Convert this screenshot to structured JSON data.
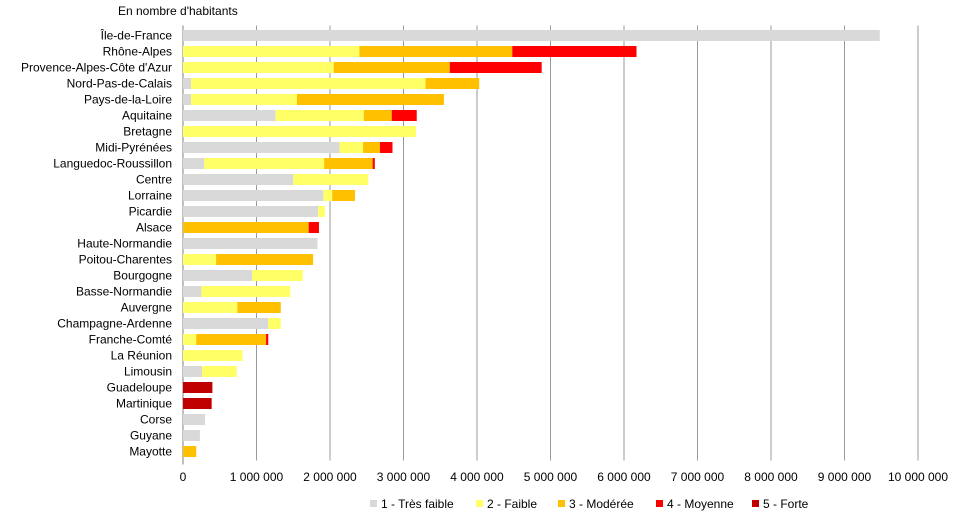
{
  "chart_data": {
    "type": "bar",
    "orientation": "horizontal",
    "stacked": true,
    "title": "",
    "unit_label": "En nombre d'habitants",
    "xlim": [
      0,
      10000000
    ],
    "xticks": [
      0,
      1000000,
      2000000,
      3000000,
      4000000,
      5000000,
      6000000,
      7000000,
      8000000,
      9000000,
      10000000
    ],
    "xtick_labels": [
      "0",
      "1 000 000",
      "2 000 000",
      "3 000 000",
      "4 000 000",
      "5 000 000",
      "6 000 000",
      "7 000 000",
      "8 000 000",
      "9 000 000",
      "10 000 000"
    ],
    "grid": "vertical",
    "legend_position": "bottom",
    "categories": [
      "Île-de-France",
      "Rhône-Alpes",
      "Provence-Alpes-Côte d'Azur",
      "Nord-Pas-de-Calais",
      "Pays-de-la-Loire",
      "Aquitaine",
      "Bretagne",
      "Midi-Pyrénées",
      "Languedoc-Roussillon",
      "Centre",
      "Lorraine",
      "Picardie",
      "Alsace",
      "Haute-Normandie",
      "Poitou-Charentes",
      "Bourgogne",
      "Basse-Normandie",
      "Auvergne",
      "Champagne-Ardenne",
      "Franche-Comté",
      "La Réunion",
      "Limousin",
      "Guadeloupe",
      "Martinique",
      "Corse",
      "Guyane",
      "Mayotte"
    ],
    "series": [
      {
        "name": "1 - Très faible",
        "color": "#d9d9d9",
        "values": [
          9480000,
          0,
          0,
          110000,
          110000,
          1260000,
          0,
          2130000,
          290000,
          1500000,
          1910000,
          1840000,
          0,
          1830000,
          0,
          940000,
          250000,
          0,
          1160000,
          0,
          0,
          260000,
          0,
          0,
          300000,
          230000,
          0
        ]
      },
      {
        "name": "2 - Faible",
        "color": "#ffff66",
        "values": [
          0,
          2400000,
          2050000,
          3190000,
          1440000,
          1200000,
          3170000,
          320000,
          1630000,
          1020000,
          120000,
          90000,
          0,
          0,
          450000,
          690000,
          1210000,
          740000,
          170000,
          180000,
          810000,
          470000,
          0,
          0,
          0,
          0,
          0
        ]
      },
      {
        "name": "3 - Modérée",
        "color": "#ffc000",
        "values": [
          0,
          2080000,
          1580000,
          730000,
          2000000,
          380000,
          0,
          230000,
          660000,
          0,
          310000,
          0,
          1710000,
          0,
          1320000,
          0,
          0,
          590000,
          0,
          950000,
          0,
          0,
          0,
          0,
          0,
          0,
          180000
        ]
      },
      {
        "name": "4 - Moyenne",
        "color": "#ff0000",
        "values": [
          0,
          1690000,
          1250000,
          0,
          0,
          340000,
          0,
          170000,
          30000,
          0,
          0,
          0,
          140000,
          0,
          0,
          0,
          0,
          0,
          0,
          30000,
          0,
          0,
          0,
          0,
          0,
          0,
          0
        ]
      },
      {
        "name": "5 - Forte",
        "color": "#c00000",
        "values": [
          0,
          0,
          0,
          0,
          0,
          0,
          0,
          0,
          0,
          0,
          0,
          0,
          0,
          0,
          0,
          0,
          0,
          0,
          0,
          0,
          0,
          0,
          400000,
          390000,
          0,
          0,
          0
        ]
      }
    ]
  }
}
